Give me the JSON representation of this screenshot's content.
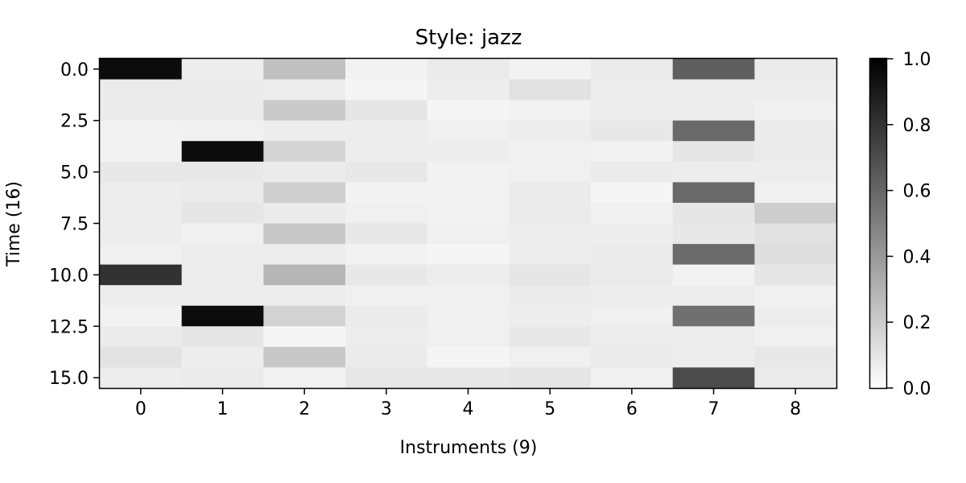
{
  "chart_data": {
    "type": "heatmap",
    "title": "Style: jazz",
    "xlabel": "Instruments (9)",
    "ylabel": "Time (16)",
    "x_ticks": [
      "0",
      "1",
      "2",
      "3",
      "4",
      "5",
      "6",
      "7",
      "8"
    ],
    "y_ticks": [
      "0.0",
      "2.5",
      "5.0",
      "7.5",
      "10.0",
      "12.5",
      "15.0"
    ],
    "y_tick_values": [
      0,
      2.5,
      5,
      7.5,
      10,
      12.5,
      15
    ],
    "colorbar": {
      "min": 0.0,
      "max": 1.0,
      "ticks": [
        "0.0",
        "0.2",
        "0.4",
        "0.6",
        "0.8",
        "1.0"
      ],
      "tick_values": [
        0,
        0.2,
        0.4,
        0.6,
        0.8,
        1.0
      ],
      "colormap": "Greys"
    },
    "values": [
      [
        0.95,
        0.05,
        0.23,
        0.03,
        0.06,
        0.03,
        0.06,
        0.62,
        0.06
      ],
      [
        0.06,
        0.06,
        0.05,
        0.02,
        0.05,
        0.1,
        0.05,
        0.05,
        0.05
      ],
      [
        0.06,
        0.06,
        0.19,
        0.08,
        0.02,
        0.03,
        0.05,
        0.05,
        0.04
      ],
      [
        0.03,
        0.04,
        0.05,
        0.05,
        0.04,
        0.05,
        0.07,
        0.58,
        0.06
      ],
      [
        0.03,
        0.95,
        0.15,
        0.05,
        0.05,
        0.04,
        0.03,
        0.08,
        0.06
      ],
      [
        0.07,
        0.07,
        0.06,
        0.07,
        0.03,
        0.04,
        0.06,
        0.05,
        0.05
      ],
      [
        0.05,
        0.06,
        0.17,
        0.03,
        0.03,
        0.06,
        0.02,
        0.58,
        0.04
      ],
      [
        0.05,
        0.08,
        0.06,
        0.04,
        0.03,
        0.06,
        0.04,
        0.08,
        0.18
      ],
      [
        0.05,
        0.04,
        0.2,
        0.07,
        0.04,
        0.05,
        0.05,
        0.07,
        0.1
      ],
      [
        0.04,
        0.05,
        0.05,
        0.03,
        0.02,
        0.05,
        0.06,
        0.57,
        0.11
      ],
      [
        0.8,
        0.05,
        0.27,
        0.07,
        0.05,
        0.08,
        0.06,
        0.03,
        0.08
      ],
      [
        0.05,
        0.05,
        0.05,
        0.04,
        0.04,
        0.06,
        0.05,
        0.05,
        0.04
      ],
      [
        0.03,
        0.95,
        0.16,
        0.06,
        0.04,
        0.05,
        0.04,
        0.55,
        0.05
      ],
      [
        0.06,
        0.08,
        0.02,
        0.05,
        0.04,
        0.07,
        0.05,
        0.05,
        0.04
      ],
      [
        0.09,
        0.05,
        0.2,
        0.06,
        0.02,
        0.04,
        0.06,
        0.05,
        0.07
      ],
      [
        0.05,
        0.06,
        0.03,
        0.07,
        0.07,
        0.08,
        0.04,
        0.7,
        0.06
      ]
    ]
  }
}
